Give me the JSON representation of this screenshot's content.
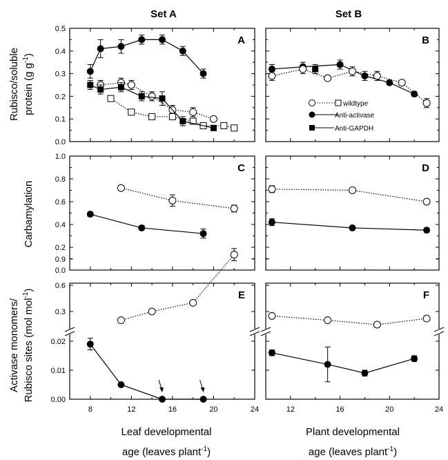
{
  "titles": {
    "set_a": "Set A",
    "set_b": "Set B"
  },
  "ylabels": {
    "top_line1": "Rubisco/soluble",
    "top_line2": "protein (g g",
    "top_sup": "-1",
    "top_end": ")",
    "mid": "Carbamylation",
    "bot_line1": "Activase monomers/",
    "bot_line2": "Rubisco sites (mol mol",
    "bot_sup": "-1",
    "bot_end": ")"
  },
  "xlabels": {
    "left_line1": "Leaf developmental",
    "left_line2": "age (leaves plant",
    "left_sup": "-1",
    "left_end": ")",
    "right_line1": "Plant developmental",
    "right_line2": "age (leaves plant",
    "right_sup": "-1",
    "right_end": ")"
  },
  "legend": [
    {
      "label": "wildtype",
      "style": "dotted",
      "markers": [
        "open-circle",
        "open-square"
      ]
    },
    {
      "label": "Anti-activase",
      "style": "solid",
      "markers": [
        "filled-circle"
      ]
    },
    {
      "label": "Anti-GAPDH",
      "style": "solid",
      "markers": [
        "filled-square"
      ]
    }
  ],
  "chart_data": [
    {
      "panel": "A",
      "type": "line",
      "set": "Set A",
      "ylim": [
        0,
        0.5
      ],
      "yticks": [
        "0.0",
        "0.1",
        "0.2",
        "0.3",
        "0.4",
        "0.5"
      ],
      "xlim": [
        6,
        24
      ],
      "series": [
        {
          "name": "Anti-activase",
          "marker": "filled-circle",
          "line": "solid",
          "x": [
            8,
            9,
            11,
            13,
            15,
            17,
            19
          ],
          "y": [
            0.31,
            0.41,
            0.42,
            0.45,
            0.45,
            0.4,
            0.3
          ],
          "err": [
            0.03,
            0.04,
            0.03,
            0.02,
            0.02,
            0.02,
            0.02
          ]
        },
        {
          "name": "wildtype",
          "marker": "open-circle",
          "line": "dotted",
          "x": [
            9,
            11,
            12,
            14,
            16,
            18,
            20
          ],
          "y": [
            0.25,
            0.26,
            0.25,
            0.2,
            0.14,
            0.13,
            0.1
          ],
          "err": [
            0.02,
            0.02,
            0.02,
            0.02,
            0.02,
            0.02,
            0.01
          ]
        },
        {
          "name": "wildtype",
          "marker": "open-square",
          "line": "dotted",
          "x": [
            10,
            12,
            14,
            16,
            18,
            19,
            21,
            22
          ],
          "y": [
            0.19,
            0.13,
            0.11,
            0.11,
            0.09,
            0.07,
            0.07,
            0.06
          ],
          "err": [
            0.01,
            0.01,
            0.01,
            0.01,
            0.01,
            0.01,
            0.01,
            0.01
          ]
        },
        {
          "name": "Anti-GAPDH",
          "marker": "filled-square",
          "line": "solid",
          "x": [
            8,
            9,
            11,
            13,
            15,
            17,
            20
          ],
          "y": [
            0.25,
            0.23,
            0.24,
            0.2,
            0.19,
            0.09,
            0.06
          ],
          "err": [
            0.02,
            0.02,
            0.02,
            0.02,
            0.03,
            0.02,
            0.01
          ]
        }
      ]
    },
    {
      "panel": "B",
      "type": "line",
      "set": "Set B",
      "ylim": [
        0,
        0.5
      ],
      "xlim": [
        10,
        24
      ],
      "series": [
        {
          "name": "Anti-activase",
          "marker": "filled-circle",
          "line": "solid",
          "x": [
            10.5,
            13,
            16,
            18,
            20,
            22
          ],
          "y": [
            0.32,
            0.33,
            0.34,
            0.29,
            0.26,
            0.21
          ],
          "err": [
            0.02,
            0.02,
            0.02,
            0.02,
            0.01,
            0.01
          ]
        },
        {
          "name": "Anti-GAPDH",
          "marker": "filled-square",
          "line": "solid",
          "x": [
            14
          ],
          "y": [
            0.32
          ],
          "err": [
            0.02
          ]
        },
        {
          "name": "wildtype",
          "marker": "open-circle",
          "line": "dotted",
          "x": [
            10.5,
            13,
            15,
            17,
            19,
            21,
            23
          ],
          "y": [
            0.29,
            0.32,
            0.28,
            0.31,
            0.29,
            0.26,
            0.17
          ],
          "err": [
            0.02,
            0.02,
            0.01,
            0.02,
            0.02,
            0.01,
            0.02
          ]
        }
      ]
    },
    {
      "panel": "C",
      "type": "line",
      "set": "Set A",
      "ylim": [
        0,
        1.0
      ],
      "yticks": [
        "0.0",
        "0.2",
        "0.4",
        "0.6",
        "0.8",
        "1.0"
      ],
      "xlim": [
        6,
        24
      ],
      "series": [
        {
          "name": "wildtype",
          "marker": "open-circle",
          "line": "dotted",
          "x": [
            11,
            16,
            22
          ],
          "y": [
            0.72,
            0.61,
            0.54
          ],
          "err": [
            0.02,
            0.05,
            0.03
          ]
        },
        {
          "name": "Anti-activase",
          "marker": "filled-circle",
          "line": "solid",
          "x": [
            8,
            13,
            19
          ],
          "y": [
            0.49,
            0.37,
            0.32
          ],
          "err": [
            0.02,
            0.02,
            0.04
          ]
        }
      ]
    },
    {
      "panel": "D",
      "type": "line",
      "set": "Set B",
      "ylim": [
        0,
        1.0
      ],
      "xlim": [
        10,
        24
      ],
      "series": [
        {
          "name": "wildtype",
          "marker": "open-circle",
          "line": "dotted",
          "x": [
            10.5,
            17,
            23
          ],
          "y": [
            0.71,
            0.7,
            0.6
          ],
          "err": [
            0.03,
            0.02,
            0.02
          ]
        },
        {
          "name": "Anti-activase",
          "marker": "filled-circle",
          "line": "solid",
          "x": [
            10.5,
            17,
            23
          ],
          "y": [
            0.42,
            0.37,
            0.35
          ],
          "err": [
            0.03,
            0.01,
            0.02
          ]
        }
      ]
    },
    {
      "panel": "E",
      "type": "line",
      "set": "Set A",
      "broken_axis": true,
      "upper_yticks": [
        "0.3",
        "0.6",
        "0.9"
      ],
      "lower_yticks": [
        "0.00",
        "0.01",
        "0.02"
      ],
      "xlim": [
        6,
        24
      ],
      "xticks": [
        "8",
        "12",
        "16",
        "20",
        "24"
      ],
      "series": [
        {
          "name": "wildtype",
          "marker": "open-circle",
          "line": "dotted",
          "segment": "upper",
          "x": [
            11,
            14,
            18,
            22
          ],
          "y": [
            0.2,
            0.3,
            0.4,
            0.95
          ],
          "err": [
            0.02,
            0.02,
            0.02,
            0.07
          ]
        },
        {
          "name": "Anti-activase",
          "marker": "filled-circle",
          "line": "solid",
          "segment": "lower",
          "x": [
            8,
            11,
            15,
            19
          ],
          "y": [
            0.019,
            0.005,
            0.0,
            0.0
          ],
          "err": [
            0.002,
            0.0,
            0.0,
            0.0
          ]
        }
      ],
      "annotations": [
        "arrows pointing to zero at x=15 and x=19"
      ]
    },
    {
      "panel": "F",
      "type": "line",
      "set": "Set B",
      "broken_axis": true,
      "xlim": [
        10,
        24
      ],
      "xticks": [
        "12",
        "16",
        "20",
        "24"
      ],
      "series": [
        {
          "name": "wildtype",
          "marker": "open-circle",
          "line": "dotted",
          "segment": "upper",
          "x": [
            10.5,
            15,
            19,
            23
          ],
          "y": [
            0.25,
            0.2,
            0.15,
            0.22
          ],
          "err": [
            0.02,
            0.02,
            0.02,
            0.02
          ]
        },
        {
          "name": "Anti-activase",
          "marker": "filled-circle",
          "line": "solid",
          "segment": "lower",
          "x": [
            10.5,
            15,
            18,
            22
          ],
          "y": [
            0.016,
            0.012,
            0.009,
            0.014
          ],
          "err": [
            0.001,
            0.006,
            0.001,
            0.001
          ]
        }
      ]
    }
  ]
}
